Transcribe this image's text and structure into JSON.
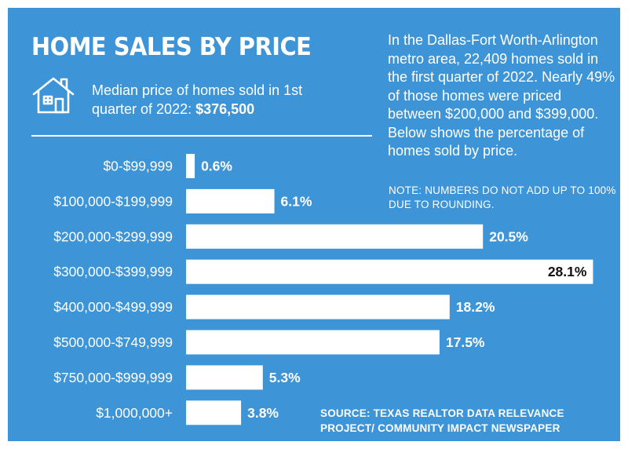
{
  "title": "HOME SALES BY PRICE",
  "median": {
    "label": "Median price of homes sold in 1st quarter of 2022:",
    "value": "$376,500"
  },
  "description": "In the Dallas-Fort Worth-Arlington metro area, 22,409 homes sold in the first quarter of 2022. Nearly 49% of those homes were priced between $200,000 and $399,000. Below shows the percentage of homes sold by price.",
  "note": "NOTE: NUMBERS DO NOT ADD UP TO 100% DUE TO ROUNDING.",
  "source": "SOURCE: TEXAS REALTOR DATA RELEVANCE PROJECT/ COMMUNITY IMPACT NEWSPAPER",
  "icons": {
    "house": "house-icon"
  },
  "colors": {
    "background": "#3d94d6",
    "bar": "#ffffff",
    "text": "#ffffff",
    "label_inside": "#111111"
  },
  "chart_data": {
    "type": "bar",
    "orientation": "horizontal",
    "categories": [
      "$0-$99,999",
      "$100,000-$199,999",
      "$200,000-$299,999",
      "$300,000-$399,999",
      "$400,000-$499,999",
      "$500,000-$749,999",
      "$750,000-$999,999",
      "$1,000,000+"
    ],
    "values": [
      0.6,
      6.1,
      20.5,
      28.1,
      18.2,
      17.5,
      5.3,
      3.8
    ],
    "value_labels": [
      "0.6%",
      "6.1%",
      "20.5%",
      "28.1%",
      "18.2%",
      "17.5%",
      "5.3%",
      "3.8%"
    ],
    "unit": "%",
    "title": "",
    "xlabel": "",
    "ylabel": "",
    "grid": false
  }
}
